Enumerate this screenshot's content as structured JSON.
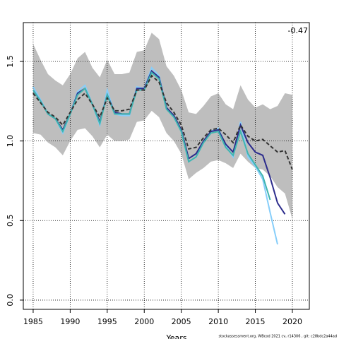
{
  "chart_data": {
    "type": "line",
    "x_label": "Years",
    "annotation": "-0.47",
    "caption": "stockassessment.org, WBcod 2021 cv, r14306 , git: c28bdc2a44ad",
    "xlim": [
      1983.67,
      2022.29
    ],
    "ylim": [
      -0.058,
      1.744
    ],
    "xticks": [
      1985,
      1990,
      1995,
      2000,
      2005,
      2010,
      2015,
      2020
    ],
    "yticks": [
      {
        "value": 0,
        "label": "0.0"
      },
      0.5,
      {
        "value": 1,
        "label": "1.0"
      },
      1.5
    ],
    "grid": true,
    "x": [
      1985,
      1986,
      1987,
      1988,
      1989,
      1990,
      1991,
      1992,
      1993,
      1994,
      1995,
      1996,
      1997,
      1998,
      1999,
      2000,
      2001,
      2002,
      2003,
      2004,
      2005,
      2006,
      2007,
      2008,
      2009,
      2010,
      2011,
      2012,
      2013,
      2014,
      2015,
      2016,
      2017,
      2018,
      2019,
      2020
    ],
    "band": {
      "color": "#bebebe",
      "upper": [
        1.61,
        1.51,
        1.42,
        1.38,
        1.35,
        1.42,
        1.52,
        1.56,
        1.46,
        1.4,
        1.51,
        1.42,
        1.42,
        1.43,
        1.56,
        1.57,
        1.68,
        1.64,
        1.47,
        1.41,
        1.32,
        1.18,
        1.17,
        1.22,
        1.28,
        1.3,
        1.23,
        1.2,
        1.35,
        1.26,
        1.21,
        1.23,
        1.2,
        1.22,
        1.3,
        1.29
      ],
      "lower": [
        1.05,
        1.04,
        0.99,
        0.96,
        0.91,
        1.0,
        1.07,
        1.08,
        1.03,
        0.96,
        1.04,
        1.0,
        1.0,
        1.01,
        1.12,
        1.13,
        1.19,
        1.15,
        1.05,
        1.0,
        0.92,
        0.76,
        0.8,
        0.83,
        0.87,
        0.88,
        0.86,
        0.83,
        0.92,
        0.87,
        0.83,
        0.82,
        0.78,
        0.71,
        0.67,
        0.51
      ]
    },
    "series": [
      {
        "color": "#87cefa",
        "values": [
          1.34,
          1.26,
          1.17,
          1.14,
          1.05,
          1.17,
          1.31,
          1.35,
          1.23,
          1.1,
          1.32,
          1.17,
          1.16,
          1.16,
          1.34,
          1.33,
          1.46,
          1.41,
          1.21,
          1.15,
          1.06,
          0.87,
          0.9,
          0.99,
          1.06,
          1.08,
          0.97,
          0.9,
          1.12,
          0.9,
          0.84,
          0.76,
          0.55,
          0.35,
          null,
          null
        ]
      },
      {
        "color": "#2c2c8c",
        "values": [
          1.32,
          1.25,
          1.17,
          1.14,
          1.07,
          1.17,
          1.3,
          1.33,
          1.23,
          1.12,
          1.29,
          1.18,
          1.17,
          1.17,
          1.33,
          1.33,
          1.44,
          1.4,
          1.21,
          1.16,
          1.07,
          0.89,
          0.92,
          1.0,
          1.06,
          1.07,
          0.98,
          0.93,
          1.1,
          0.99,
          0.93,
          0.91,
          0.77,
          0.61,
          0.54,
          null
        ]
      },
      {
        "color": "#3fb5b0",
        "values": [
          1.32,
          1.25,
          1.17,
          1.14,
          1.06,
          1.17,
          1.29,
          1.33,
          1.23,
          1.11,
          1.29,
          1.17,
          1.17,
          1.17,
          1.32,
          1.32,
          1.43,
          1.39,
          1.2,
          1.15,
          1.06,
          0.87,
          0.9,
          0.99,
          1.05,
          1.06,
          0.96,
          0.91,
          1.06,
          0.92,
          0.85,
          0.78,
          0.63,
          null,
          null,
          null
        ]
      },
      {
        "color": "#333333",
        "style": "dashed",
        "values": [
          1.3,
          1.24,
          1.18,
          1.15,
          1.1,
          1.18,
          1.26,
          1.3,
          1.23,
          1.15,
          1.27,
          1.19,
          1.19,
          1.2,
          1.32,
          1.32,
          1.41,
          1.37,
          1.24,
          1.18,
          1.1,
          0.95,
          0.96,
          1.02,
          1.07,
          1.08,
          1.04,
          0.99,
          1.1,
          1.03,
          1.0,
          1.01,
          0.97,
          0.93,
          0.94,
          0.82
        ]
      }
    ]
  }
}
